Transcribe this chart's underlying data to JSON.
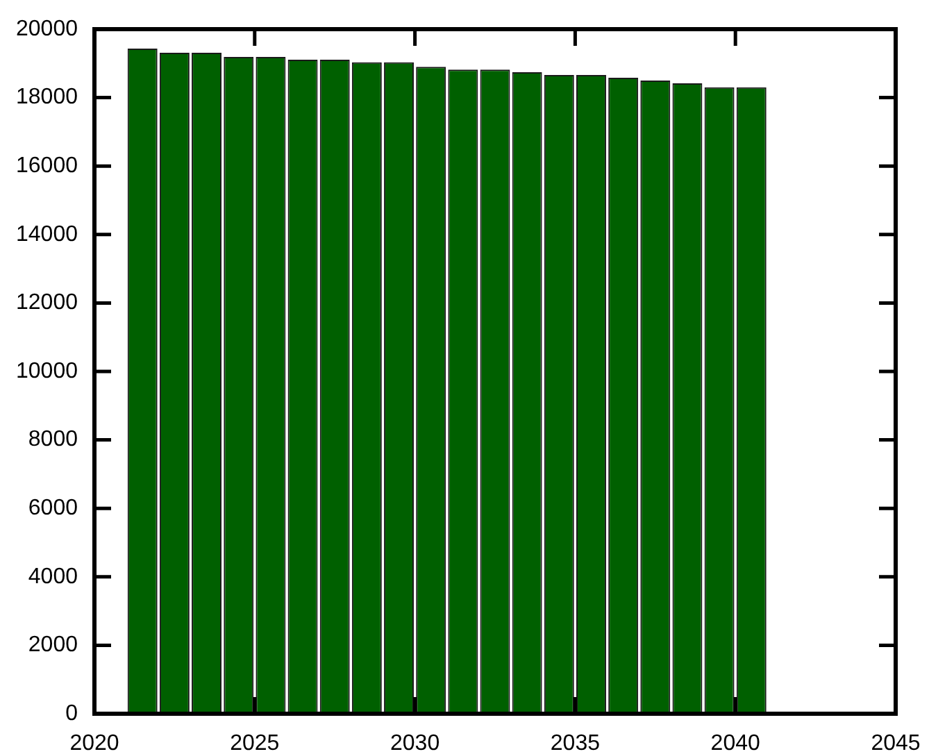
{
  "chart_data": {
    "type": "histogram",
    "bins": [
      2021,
      2022,
      2023,
      2024,
      2025,
      2026,
      2027,
      2028,
      2029,
      2030,
      2031,
      2032,
      2033,
      2034,
      2035,
      2036,
      2037,
      2038,
      2039,
      2040,
      2041
    ],
    "values": [
      19430,
      19310,
      19310,
      19190,
      19190,
      19110,
      19110,
      19030,
      19030,
      18900,
      18820,
      18820,
      18740,
      18660,
      18660,
      18580,
      18500,
      18420,
      18300,
      18300
    ],
    "color": "#006000",
    "xlim": [
      2020,
      2045
    ],
    "xticks": [
      2020,
      2025,
      2030,
      2035,
      2040,
      2045
    ],
    "ylim": [
      0,
      20000
    ],
    "yticks": [
      0,
      2000,
      4000,
      6000,
      8000,
      10000,
      12000,
      14000,
      16000,
      18000,
      20000
    ]
  }
}
